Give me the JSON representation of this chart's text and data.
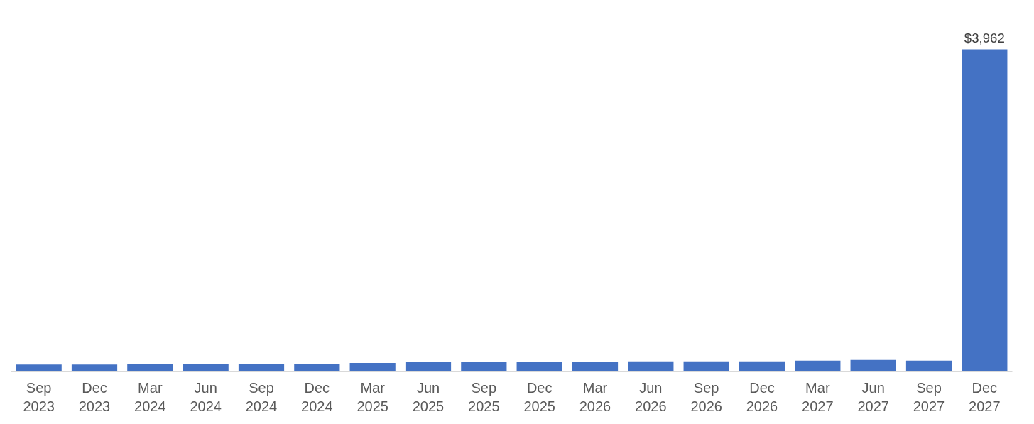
{
  "chart_data": {
    "type": "bar",
    "color": "#4472c4",
    "categories": [
      "Sep\n2023",
      "Dec\n2023",
      "Mar\n2024",
      "Jun\n2024",
      "Sep\n2024",
      "Dec\n2024",
      "Mar\n2025",
      "Jun\n2025",
      "Sep\n2025",
      "Dec\n2025",
      "Mar\n2026",
      "Jun\n2026",
      "Sep\n2026",
      "Dec\n2026",
      "Mar\n2027",
      "Jun\n2027",
      "Sep\n2027",
      "Dec\n2027"
    ],
    "values": [
      90,
      90,
      99,
      99,
      99,
      99,
      108,
      117,
      117,
      120,
      120,
      129,
      129,
      129,
      137,
      146,
      137,
      3962
    ],
    "value_labels": [
      null,
      null,
      null,
      null,
      null,
      null,
      null,
      null,
      null,
      null,
      null,
      null,
      null,
      null,
      null,
      null,
      null,
      "$3,962"
    ],
    "grid": false
  }
}
